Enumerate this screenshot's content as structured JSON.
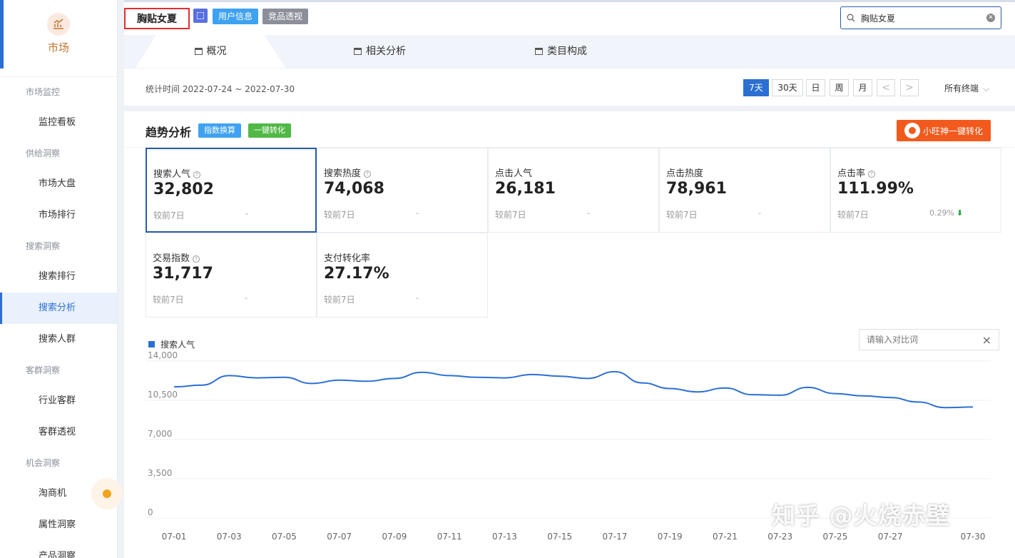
{
  "sidebar": {
    "logo_label": "市场",
    "groups": [
      {
        "title": "市场监控",
        "items": [
          "监控看板"
        ]
      },
      {
        "title": "供给洞察",
        "items": [
          "市场大盘",
          "市场排行"
        ]
      },
      {
        "title": "搜索洞察",
        "items": [
          "搜索排行",
          "搜索分析",
          "搜索人群"
        ]
      },
      {
        "title": "客群洞察",
        "items": [
          "行业客群",
          "客群透视"
        ]
      },
      {
        "title": "机会洞察",
        "items": [
          "淘商机",
          "属性洞察",
          "产品洞察"
        ]
      }
    ],
    "active_item": "搜索分析"
  },
  "header": {
    "keyword": "胸贴女夏",
    "user_info_label": "用户信息",
    "competitor_label": "竞品透视",
    "search_value": "胸贴女夏",
    "tabs": [
      "概况",
      "相关分析",
      "类目构成"
    ],
    "active_tab": "概况"
  },
  "filters": {
    "date_range": "统计时间 2022-07-24 ~ 2022-07-30",
    "periods": [
      "7天",
      "30天",
      "日",
      "周",
      "月"
    ],
    "active_period": "7天",
    "prev_arrow": "<",
    "next_arrow": ">",
    "terminal": "所有终端"
  },
  "trend": {
    "title": "趋势分析",
    "index_convert_label": "指数换算",
    "one_click_label": "一键转化",
    "wangwang_label": "小旺神一键转化",
    "metrics": [
      {
        "label": "搜索人气",
        "value": "32,802",
        "compare": "较前7日",
        "delta": "-",
        "help": true
      },
      {
        "label": "搜索热度",
        "value": "74,068",
        "compare": "较前7日",
        "delta": "-",
        "help": true
      },
      {
        "label": "点击人气",
        "value": "26,181",
        "compare": "较前7日",
        "delta": "-",
        "help": false
      },
      {
        "label": "点击热度",
        "value": "78,961",
        "compare": "较前7日",
        "delta": "-",
        "help": false
      },
      {
        "label": "点击率",
        "value": "111.99%",
        "compare": "较前7日",
        "delta": "0.29%",
        "help": true,
        "trend": "down"
      },
      {
        "label": "交易指数",
        "value": "31,717",
        "compare": "较前7日",
        "delta": "-",
        "help": true
      },
      {
        "label": "支付转化率",
        "value": "27.17%",
        "compare": "较前7日",
        "delta": "-",
        "help": false
      }
    ],
    "compare_placeholder": "请输入对比词",
    "compare_clear": "×"
  },
  "chart_data": {
    "type": "line",
    "series": [
      {
        "name": "搜索人气",
        "color": "#2b6fd3",
        "values": [
          11700,
          11850,
          12700,
          12500,
          12550,
          12000,
          12300,
          12200,
          12450,
          13000,
          12700,
          12550,
          12500,
          12800,
          12650,
          12450,
          13050,
          12050,
          11550,
          11250,
          11600,
          11000,
          10950,
          11650,
          11100,
          10900,
          10750,
          10350,
          9850,
          9900
        ]
      }
    ],
    "x": [
      "07-01",
      "07-02",
      "07-03",
      "07-04",
      "07-05",
      "07-06",
      "07-07",
      "07-08",
      "07-09",
      "07-10",
      "07-11",
      "07-12",
      "07-13",
      "07-14",
      "07-15",
      "07-16",
      "07-17",
      "07-18",
      "07-19",
      "07-20",
      "07-21",
      "07-22",
      "07-23",
      "07-24",
      "07-25",
      "07-26",
      "07-27",
      "07-28",
      "07-29",
      "07-30"
    ],
    "x_tick_labels": [
      "07-01",
      "07-03",
      "07-05",
      "07-07",
      "07-09",
      "07-11",
      "07-13",
      "07-15",
      "07-17",
      "07-19",
      "07-21",
      "07-23",
      "07-25",
      "07-27",
      "07-30"
    ],
    "y_ticks": [
      "0",
      "3,500",
      "7,000",
      "10,500",
      "14,000"
    ],
    "ylim": [
      0,
      14000
    ],
    "grid": true,
    "legend": "top-left"
  },
  "watermark": "知乎 @火烧赤壁"
}
